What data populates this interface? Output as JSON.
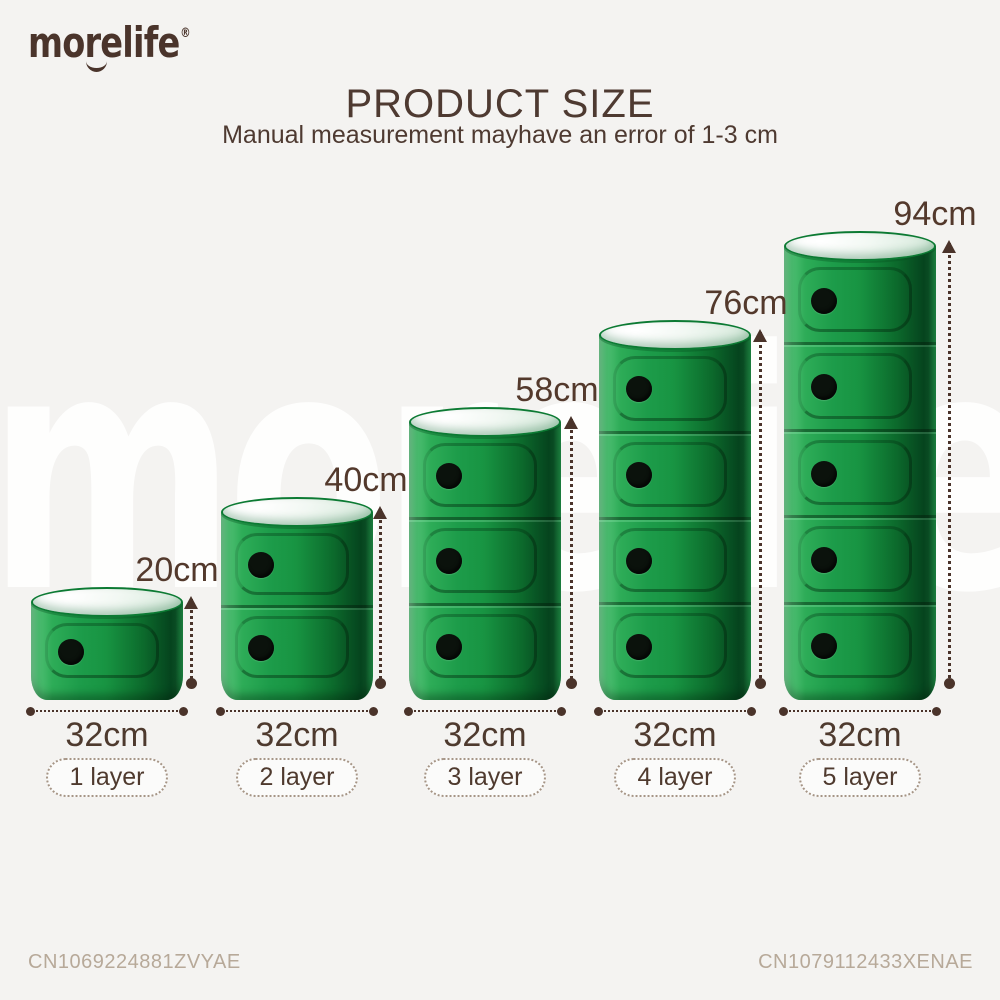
{
  "brand": {
    "logo_text": "morelife",
    "registered_mark": "®"
  },
  "header": {
    "title": "PRODUCT SIZE",
    "subtitle": "Manual measurement mayhave an error of 1-3 cm"
  },
  "watermark": {
    "text": "morelife",
    "registered_mark": "®"
  },
  "products": [
    {
      "layers": 1,
      "height_label": "20cm",
      "width_label": "32cm",
      "tag": "1 layer"
    },
    {
      "layers": 2,
      "height_label": "40cm",
      "width_label": "32cm",
      "tag": "2 layer"
    },
    {
      "layers": 3,
      "height_label": "58cm",
      "width_label": "32cm",
      "tag": "3 layer"
    },
    {
      "layers": 4,
      "height_label": "76cm",
      "width_label": "32cm",
      "tag": "4 layer"
    },
    {
      "layers": 5,
      "height_label": "94cm",
      "width_label": "32cm",
      "tag": "5 layer"
    }
  ],
  "footer": {
    "left_code": "CN1069224881ZVYAE",
    "right_code": "CN1079112433XENAE"
  },
  "colors": {
    "brand_green": "#189a46",
    "text_brown": "#4e3a31",
    "arrow_brown": "#4a332a",
    "code_gray": "#b7a999",
    "background": "#f4f3f1"
  }
}
